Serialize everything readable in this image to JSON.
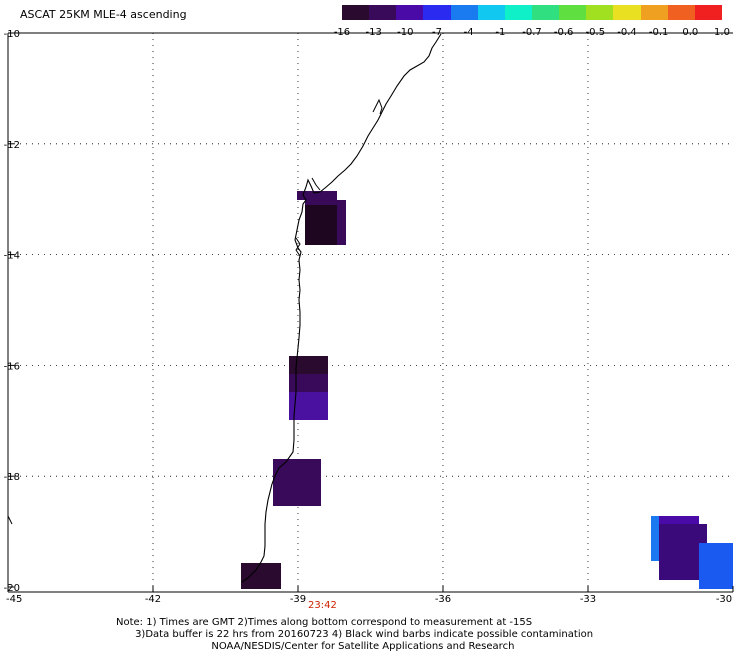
{
  "title": "ASCAT 25KM MLE-4 ascending",
  "colorbar": {
    "colors": [
      "#2a0a2e",
      "#3a0a5a",
      "#4a0aa8",
      "#2a2af0",
      "#1a7af0",
      "#10c8f0",
      "#10f0c8",
      "#30e080",
      "#60e040",
      "#a0e020",
      "#e8e020",
      "#f0a020",
      "#f06020",
      "#f02020"
    ],
    "labels": [
      "-16",
      "-13",
      "-10",
      "-7",
      "-4",
      "-1",
      "-0.7",
      "-0.6",
      "-0.5",
      "-0.4",
      "-0.1",
      "0.0",
      "1.0"
    ]
  },
  "axes": {
    "lat_labels": [
      "-10",
      "-12",
      "-14",
      "-16",
      "-18",
      "-20"
    ],
    "lon_labels": [
      "-45",
      "-42",
      "-39",
      "-36",
      "-33",
      "-30"
    ]
  },
  "time_label": "23:42",
  "notes": [
    "Note: 1) Times are GMT 2)Times along bottom correspond to measurement at -15S",
    "      3)Data buffer is 22 hrs from 20160723 4) Black wind barbs indicate possible contamination",
    "                              NOAA/NESDIS/Center for Satellite Applications and Research"
  ],
  "data_cells": [
    {
      "lon": -38.0,
      "lat": -13.2,
      "color": "#2a0a2e"
    },
    {
      "lon": -38.4,
      "lat": -16.5,
      "color": "#3a0a5a"
    },
    {
      "lon": -39.0,
      "lat": -18.2,
      "color": "#3a0a5a"
    },
    {
      "lon": -39.8,
      "lat": -19.8,
      "color": "#2a0a2e"
    },
    {
      "lon": -31.1,
      "lat": -19.1,
      "color": "#4a0aa8"
    },
    {
      "lon": -30.2,
      "lat": -19.7,
      "color": "#1a5af0"
    }
  ]
}
